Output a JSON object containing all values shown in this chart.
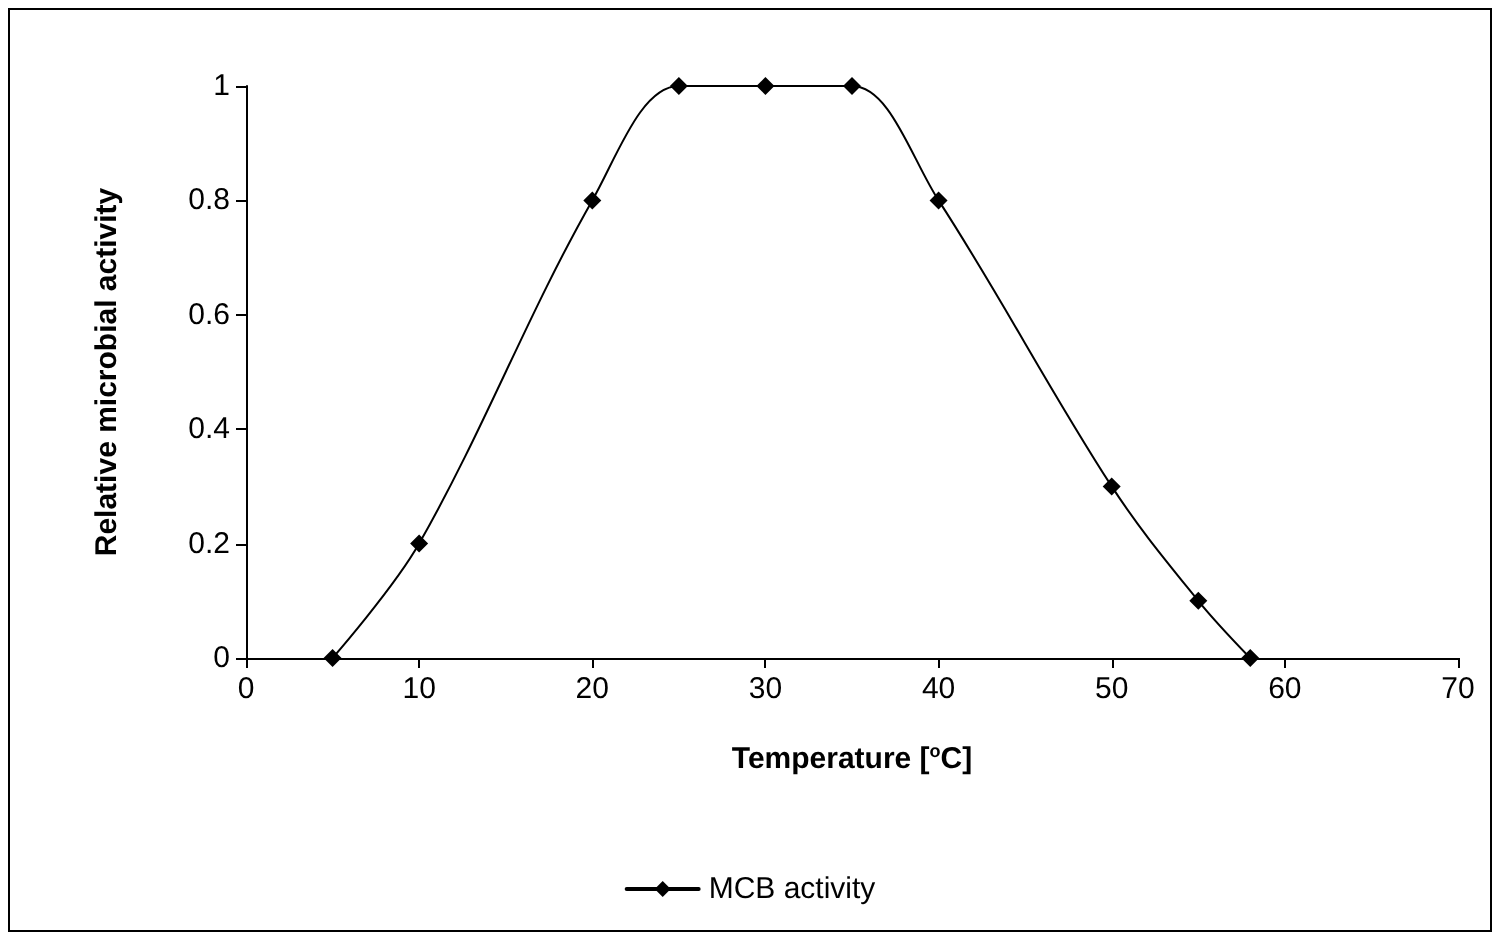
{
  "chart_data": {
    "type": "line",
    "xlabel": "Temperature [$^{o}$C]",
    "ylabel": "Relative microbial activity",
    "x": [
      5,
      10,
      20,
      25,
      30,
      35,
      40,
      50,
      55,
      58
    ],
    "series": [
      {
        "name": "MCB activity",
        "color": "#000000",
        "values": [
          0,
          0.2,
          0.8,
          1,
          1,
          1,
          0.8,
          0.3,
          0.1,
          0
        ]
      }
    ],
    "xlim": [
      0,
      70
    ],
    "xticks": [
      0,
      10,
      20,
      30,
      40,
      50,
      60,
      70
    ],
    "ylim": [
      0,
      1
    ],
    "yticks": [
      0,
      0.2,
      0.4,
      0.6,
      0.8,
      1
    ],
    "grid": false,
    "legend": "bottom",
    "marker": "diamond",
    "line_style": "solid"
  }
}
